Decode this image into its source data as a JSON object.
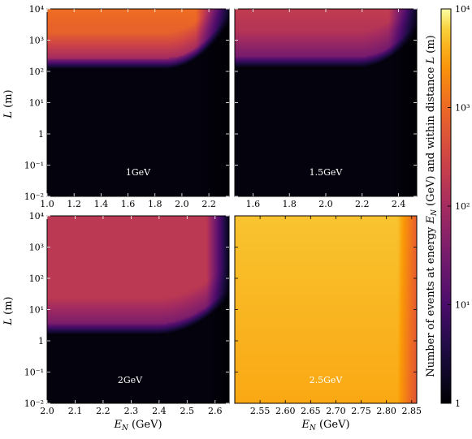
{
  "chart_data": {
    "type": "heatmap",
    "y_axis_label_italic": "L",
    "y_axis_label_unit": " (m)",
    "x_axis_label_italic": "E",
    "x_axis_label_sub": "N",
    "x_axis_label_unit": " (GeV)",
    "y_scale": "log",
    "ylim": [
      0.01,
      10000
    ],
    "y_ticks": [
      "10⁻²",
      "10⁻¹",
      "1",
      "10¹",
      "10²",
      "10³",
      "10⁴"
    ],
    "y_tick_values": [
      0.01,
      0.1,
      1,
      10,
      100,
      1000,
      10000
    ],
    "colorbar": {
      "label": "Number of events at energy E_N (GeV) and within distance L (m)",
      "label_prefix": "Number of events at energy ",
      "label_E": "E",
      "label_N": "N",
      "label_mid": " (GeV) and within distance ",
      "label_L": "L",
      "label_suffix": " (m)",
      "scale": "log",
      "range": [
        1,
        10000
      ],
      "ticks": [
        "1",
        "10¹",
        "10²",
        "10³",
        "10⁴"
      ],
      "colormap": "inferno"
    },
    "panels": [
      {
        "label": "1GeV",
        "xlim": [
          1.0,
          2.35
        ],
        "x_ticks": [
          "1.0",
          "1.2",
          "1.4",
          "1.6",
          "1.8",
          "2.0",
          "2.2"
        ],
        "x_tick_values": [
          1.0,
          1.2,
          1.4,
          1.6,
          1.8,
          2.0,
          2.2
        ],
        "peak_events": 800,
        "onset_L_start": 120,
        "onset_L_end": 3000,
        "bend_fraction": 0.65,
        "edge_fade": 0.82
      },
      {
        "label": "1.5GeV",
        "xlim": [
          1.5,
          2.5
        ],
        "x_ticks": [
          "1.6",
          "1.8",
          "2.0",
          "2.2",
          "2.4"
        ],
        "x_tick_values": [
          1.6,
          1.8,
          2.0,
          2.2,
          2.4
        ],
        "peak_events": 150,
        "onset_L_start": 130,
        "onset_L_end": 1500,
        "bend_fraction": 0.68,
        "edge_fade": 0.85
      },
      {
        "label": "2GeV",
        "xlim": [
          2.0,
          2.65
        ],
        "x_ticks": [
          "2.0",
          "2.1",
          "2.2",
          "2.3",
          "2.4",
          "2.5",
          "2.6"
        ],
        "x_tick_values": [
          2.0,
          2.1,
          2.2,
          2.3,
          2.4,
          2.5,
          2.6
        ],
        "peak_events": 180,
        "onset_L_start": 1.5,
        "onset_L_end": 20,
        "bend_fraction": 0.6,
        "edge_fade": 0.88
      },
      {
        "label": "2.5GeV",
        "xlim": [
          2.5,
          2.86
        ],
        "x_ticks": [
          "2.55",
          "2.60",
          "2.65",
          "2.70",
          "2.75",
          "2.80",
          "2.85"
        ],
        "x_tick_values": [
          2.55,
          2.6,
          2.65,
          2.7,
          2.75,
          2.8,
          2.85
        ],
        "peak_events": 3500,
        "onset_L_start": 0.001,
        "onset_L_end": 0.001,
        "bend_fraction": 0.9,
        "edge_fade": 0.9
      }
    ]
  }
}
